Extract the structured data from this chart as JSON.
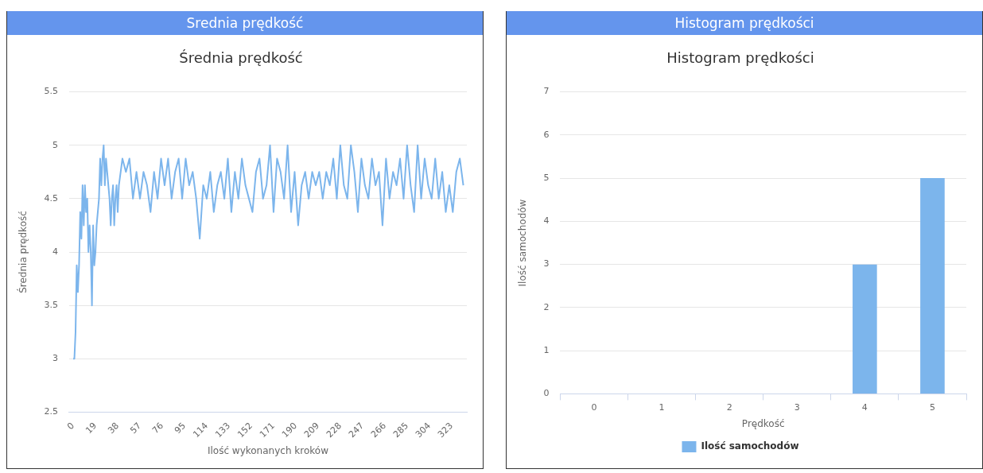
{
  "chart_data": [
    {
      "type": "line",
      "title": "Srednia prędkość",
      "subtitle": "Średnia prędkość",
      "xlabel": "Ilość wykonanych kroków",
      "ylabel": "Średnia prędkość",
      "x": [
        0,
        1,
        2,
        3,
        4,
        5,
        6,
        7,
        8,
        9,
        10,
        11,
        12,
        13,
        14,
        15,
        16,
        17,
        18,
        19,
        20,
        21,
        22,
        23,
        24,
        25,
        26,
        27,
        28,
        29,
        30,
        31,
        32,
        33,
        34,
        35,
        36,
        37,
        38,
        39,
        42,
        45,
        48,
        51,
        54,
        57,
        60,
        63,
        66,
        69,
        72,
        75,
        78,
        81,
        84,
        87,
        90,
        93,
        96,
        99,
        102,
        105,
        108,
        111,
        114,
        117,
        120,
        123,
        126,
        129,
        132,
        135,
        138,
        141,
        144,
        147,
        150,
        153,
        156,
        159,
        162,
        165,
        168,
        171,
        174,
        177,
        180,
        183,
        186,
        189,
        192,
        195,
        198,
        201,
        204,
        207,
        210,
        213,
        216,
        219,
        222,
        225,
        228,
        231,
        234,
        237,
        240,
        243,
        246,
        249,
        252,
        255,
        258,
        261,
        264,
        267,
        270,
        273,
        276,
        279,
        282,
        285,
        288,
        291,
        294,
        297,
        300,
        303,
        306,
        309,
        312,
        315,
        318,
        321,
        324,
        327,
        330,
        333
      ],
      "series": [
        {
          "color": "#7cb5ec",
          "values": [
            3,
            3,
            3.25,
            3.875,
            3.625,
            3.875,
            4.375,
            4.125,
            4.625,
            4.25,
            4.625,
            4.375,
            4.5,
            4,
            4.25,
            4,
            3.5,
            4.25,
            3.875,
            4,
            4.25,
            4.375,
            4.5,
            4.875,
            4.625,
            4.875,
            5,
            4.625,
            4.875,
            4.75,
            4.625,
            4.5,
            4.25,
            4.5,
            4.625,
            4.25,
            4.5,
            4.625,
            4.375,
            4.625,
            4.875,
            4.75,
            4.875,
            4.5,
            4.75,
            4.5,
            4.75,
            4.625,
            4.375,
            4.75,
            4.5,
            4.875,
            4.625,
            4.875,
            4.5,
            4.75,
            4.875,
            4.5,
            4.875,
            4.625,
            4.75,
            4.5,
            4.125,
            4.625,
            4.5,
            4.75,
            4.375,
            4.625,
            4.75,
            4.5,
            4.875,
            4.375,
            4.75,
            4.5,
            4.875,
            4.625,
            4.5,
            4.375,
            4.75,
            4.875,
            4.5,
            4.625,
            5,
            4.375,
            4.875,
            4.75,
            4.5,
            5,
            4.375,
            4.75,
            4.25,
            4.625,
            4.75,
            4.5,
            4.75,
            4.625,
            4.75,
            4.5,
            4.75,
            4.625,
            4.875,
            4.5,
            5,
            4.625,
            4.5,
            5,
            4.75,
            4.375,
            4.875,
            4.625,
            4.5,
            4.875,
            4.625,
            4.75,
            4.25,
            4.875,
            4.5,
            4.75,
            4.625,
            4.875,
            4.5,
            5,
            4.625,
            4.375,
            5,
            4.5,
            4.875,
            4.625,
            4.5,
            4.875,
            4.5,
            4.75,
            4.375,
            4.625,
            4.375,
            4.75,
            4.875,
            4.625
          ]
        }
      ],
      "xlim": [
        -3.5,
        336
      ],
      "xticks": [
        0,
        19,
        38,
        57,
        76,
        95,
        114,
        133,
        152,
        171,
        190,
        209,
        228,
        247,
        266,
        285,
        304,
        323
      ],
      "ylim": [
        2.5,
        5.5
      ],
      "yticks": [
        2.5,
        3,
        3.5,
        4,
        4.5,
        5,
        5.5
      ],
      "grid": "y",
      "legend": false,
      "marker": "none"
    },
    {
      "type": "bar",
      "title": "Histogram prędkości",
      "subtitle": "Histogram prędkości",
      "xlabel": "Prędkość",
      "ylabel": "Ilość samochodów",
      "categories": [
        "0",
        "1",
        "2",
        "3",
        "4",
        "5"
      ],
      "series": [
        {
          "name": "Ilość samochodów",
          "color": "#7cb5ec",
          "values": [
            0,
            0,
            0,
            0,
            3,
            5
          ]
        }
      ],
      "ylim": [
        0,
        7
      ],
      "yticks": [
        0,
        1,
        2,
        3,
        4,
        5,
        6,
        7
      ],
      "grid": "y",
      "legend": "bottom"
    }
  ]
}
